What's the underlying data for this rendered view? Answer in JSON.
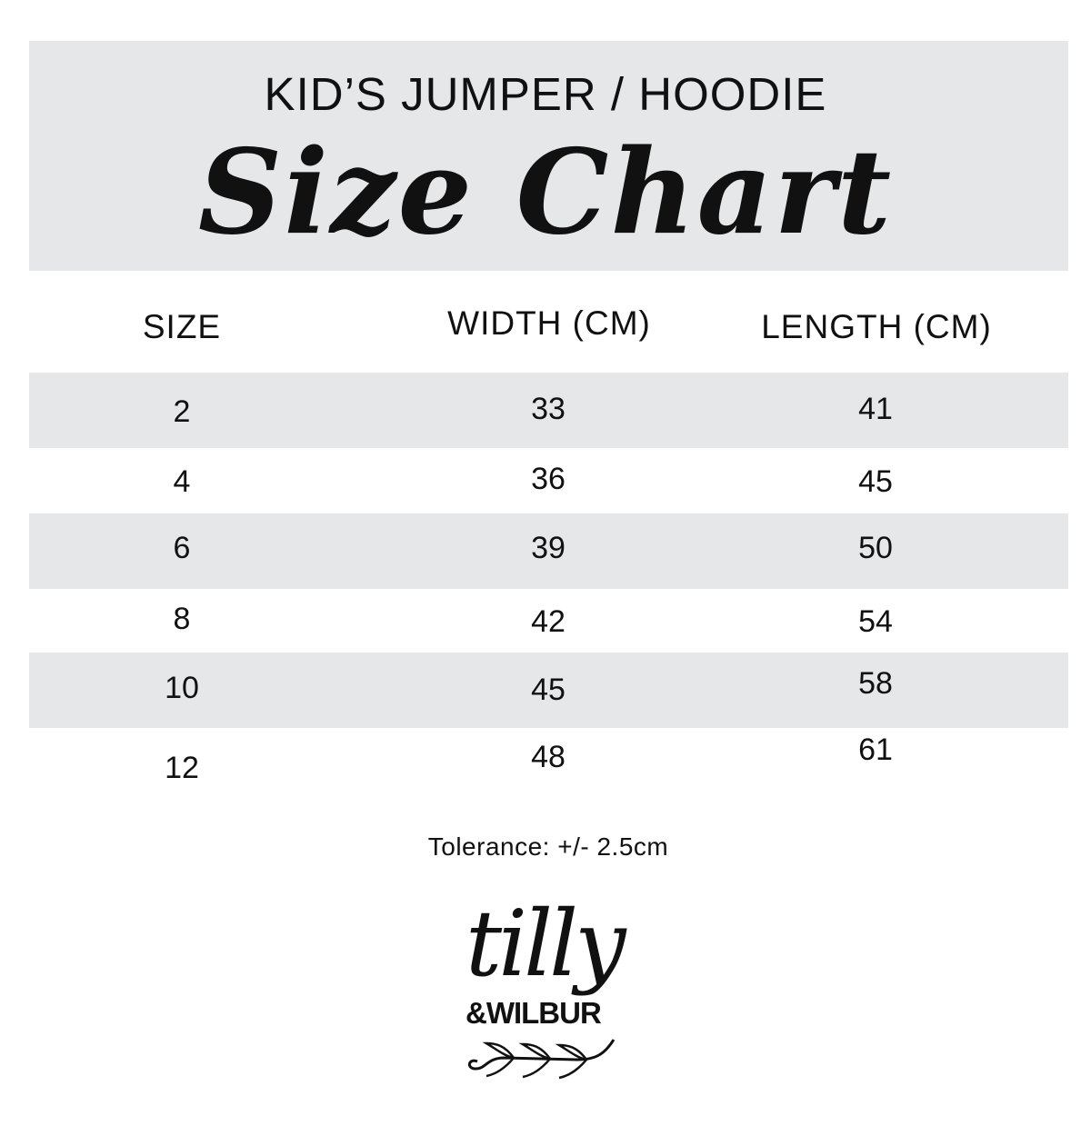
{
  "header": {
    "subtitle": "KID’S JUMPER / HOODIE",
    "title": "Size Chart",
    "background": "#e6e7e8"
  },
  "table": {
    "columns": [
      "SIZE",
      "WIDTH (CM)",
      "LENGTH (CM)"
    ],
    "rows": [
      [
        "2",
        "33",
        "41"
      ],
      [
        "4",
        "36",
        "45"
      ],
      [
        "6",
        "39",
        "50"
      ],
      [
        "8",
        "42",
        "54"
      ],
      [
        "10",
        "45",
        "58"
      ],
      [
        "12",
        "48",
        "61"
      ]
    ],
    "stripe_color": "#e6e7e8"
  },
  "tolerance": "Tolerance: +/- 2.5cm",
  "logo": {
    "script": "tilly",
    "sub": "&WILBUR"
  }
}
